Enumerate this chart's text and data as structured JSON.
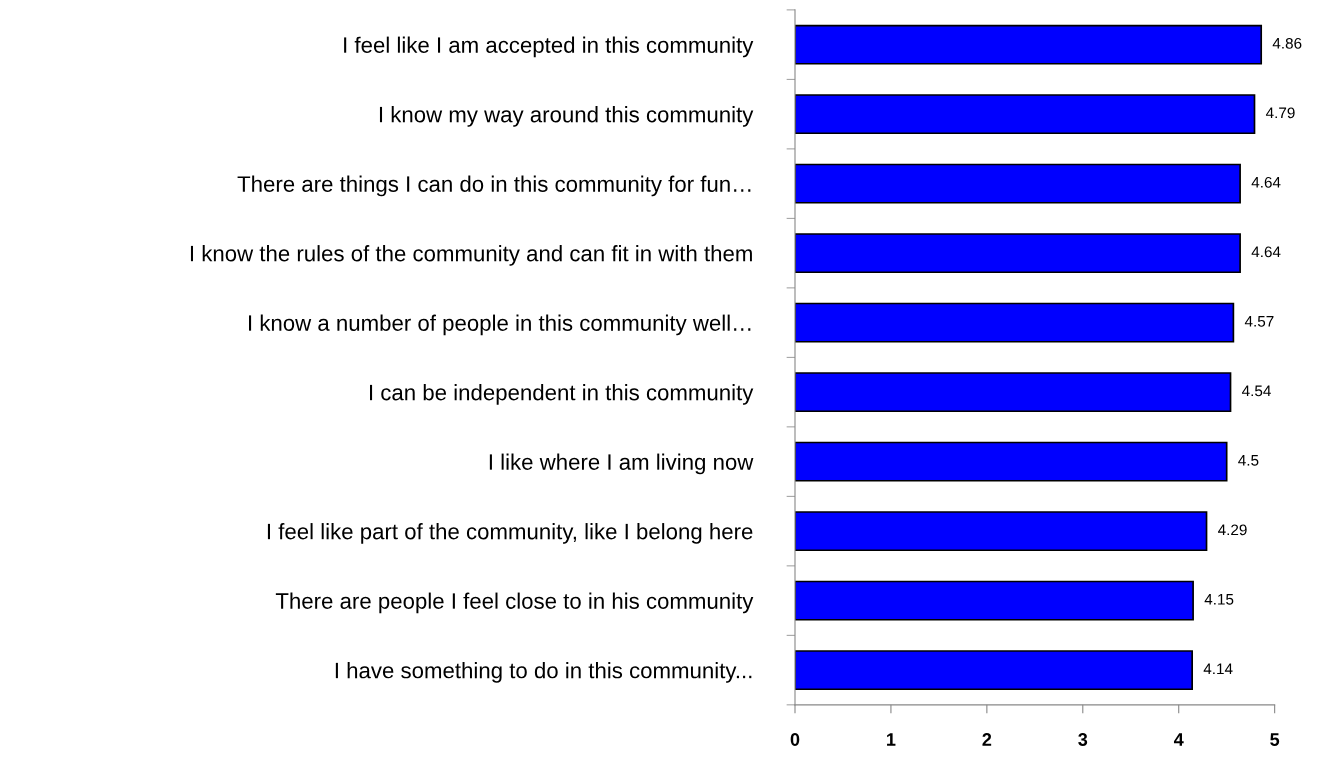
{
  "chart_data": {
    "type": "bar",
    "orientation": "horizontal",
    "categories": [
      "I feel like I am accepted in this community",
      "I know my way around this community",
      "There are things I can do in this community for fun…",
      "I know the rules of the community and can fit in with them",
      "I know a number of people in this community well…",
      "I can be independent in this community",
      "I like where I am living now",
      "I feel like part of the community, like I belong here",
      "There are people I feel close to in his community",
      "I have something to do in this community..."
    ],
    "values": [
      4.86,
      4.79,
      4.64,
      4.64,
      4.57,
      4.54,
      4.5,
      4.29,
      4.15,
      4.14
    ],
    "color": "#0000ff",
    "xlim": [
      0,
      5
    ],
    "xticks": [
      0,
      1,
      2,
      3,
      4,
      5
    ],
    "data_labels": true,
    "grid": false,
    "legend": false
  }
}
